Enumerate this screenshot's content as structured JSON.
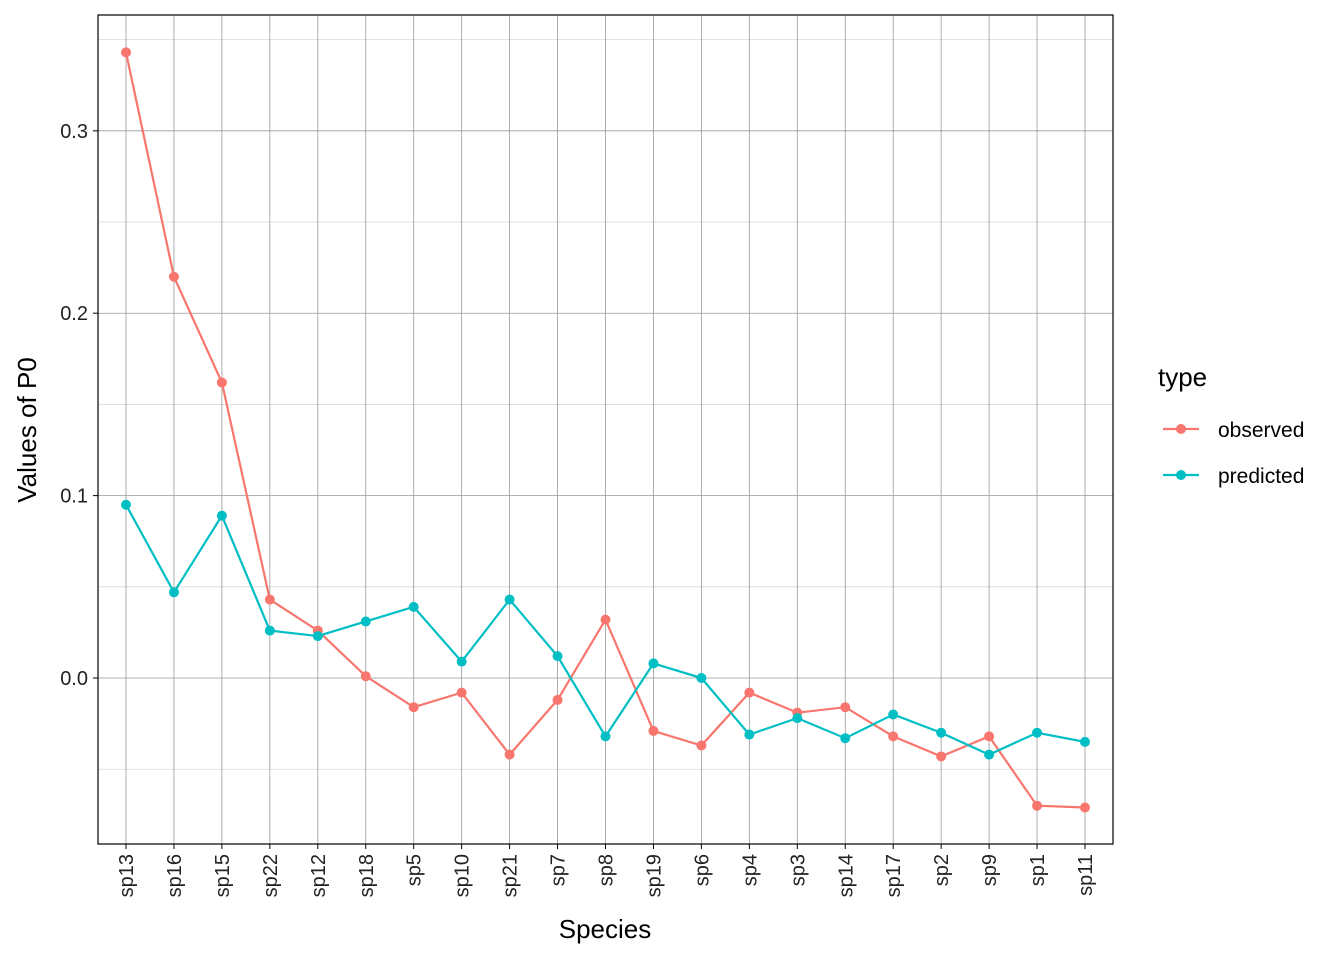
{
  "chart_data": {
    "type": "line",
    "title": "",
    "xlabel": "Species",
    "ylabel": "Values of P0",
    "categories": [
      "sp13",
      "sp16",
      "sp15",
      "sp22",
      "sp12",
      "sp18",
      "sp5",
      "sp10",
      "sp21",
      "sp7",
      "sp8",
      "sp19",
      "sp6",
      "sp4",
      "sp3",
      "sp14",
      "sp17",
      "sp2",
      "sp9",
      "sp1",
      "sp11"
    ],
    "ylim": [
      -0.091,
      0.3635
    ],
    "yticks": [
      0.0,
      0.1,
      0.2,
      0.3
    ],
    "ytick_labels": [
      "0.0",
      "0.1",
      "0.2",
      "0.3"
    ],
    "grid": true,
    "legend": {
      "title": "type",
      "placement": "right"
    },
    "series": [
      {
        "name": "observed",
        "color": "#F8766D",
        "values": [
          0.343,
          0.22,
          0.162,
          0.043,
          0.026,
          0.001,
          -0.016,
          -0.008,
          -0.042,
          -0.012,
          0.032,
          -0.029,
          -0.037,
          -0.008,
          -0.019,
          -0.016,
          -0.032,
          -0.043,
          -0.032,
          -0.07,
          -0.071
        ]
      },
      {
        "name": "predicted",
        "color": "#00BFC4",
        "values": [
          0.095,
          0.047,
          0.089,
          0.026,
          0.023,
          0.031,
          0.039,
          0.009,
          0.043,
          0.012,
          -0.032,
          0.008,
          0.0,
          -0.031,
          -0.022,
          -0.033,
          -0.02,
          -0.03,
          -0.042,
          -0.03,
          -0.035
        ]
      }
    ]
  }
}
